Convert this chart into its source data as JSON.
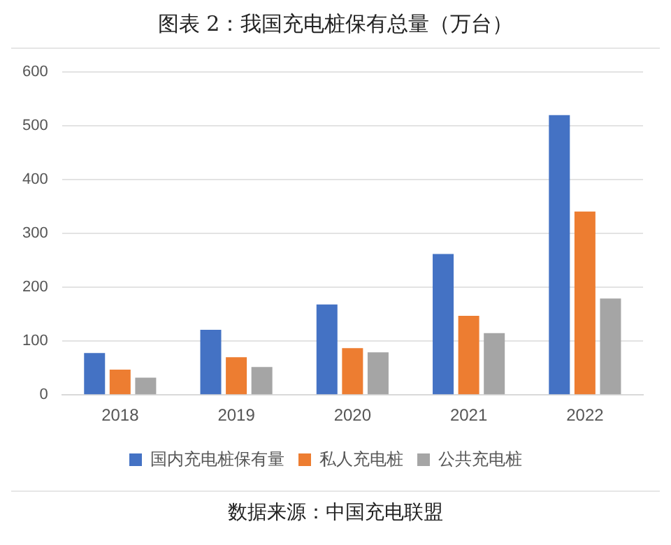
{
  "chart_data": {
    "type": "bar",
    "title": "图表 2：我国充电桩保有总量（万台）",
    "categories": [
      "2018",
      "2019",
      "2020",
      "2021",
      "2022"
    ],
    "series": [
      {
        "name": "国内充电桩保有量",
        "color": "#4472c4",
        "values": [
          78,
          121,
          168,
          262,
          520
        ]
      },
      {
        "name": "私人充电桩",
        "color": "#ed7d31",
        "values": [
          47,
          70,
          87,
          147,
          341
        ]
      },
      {
        "name": "公共充电桩",
        "color": "#a5a5a5",
        "values": [
          32,
          52,
          79,
          115,
          179
        ]
      }
    ],
    "ylim": [
      0,
      600
    ],
    "yticks": [
      0,
      100,
      200,
      300,
      400,
      500,
      600
    ],
    "grid": "y",
    "legend": "bottom",
    "annotations": [
      "数据来源：中国充电联盟"
    ]
  }
}
